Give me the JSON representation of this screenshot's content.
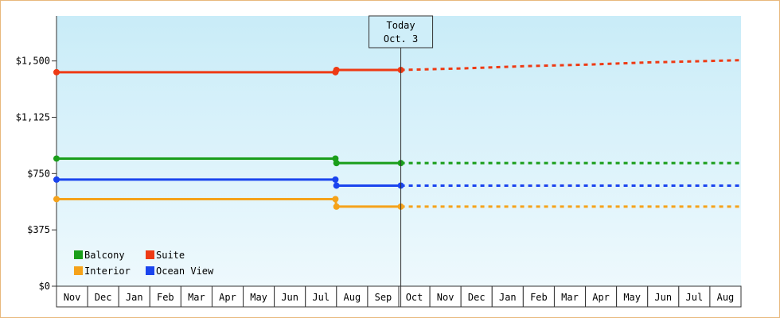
{
  "chart_data": {
    "type": "line",
    "title": "",
    "xlabel": "",
    "ylabel": "",
    "ylim": [
      0,
      1800
    ],
    "yticks": [
      0,
      375,
      750,
      1125,
      1500
    ],
    "ytick_labels": [
      "$0",
      "$375",
      "$750",
      "$1,125",
      "$1,500"
    ],
    "x_start": "2023-11-01",
    "x_end": "2025-09-01",
    "month_labels": [
      "Nov",
      "Dec",
      "Jan",
      "Feb",
      "Mar",
      "Apr",
      "May",
      "Jun",
      "Jul",
      "Aug",
      "Sep",
      "Oct",
      "Nov",
      "Dec",
      "Jan",
      "Feb",
      "Mar",
      "Apr",
      "May",
      "Jun",
      "Jul",
      "Aug"
    ],
    "today": {
      "date": "2024-10-03",
      "label_line1": "Today",
      "label_line2": "Oct. 3"
    },
    "grid": false,
    "legend_position": "bottom-left",
    "series": [
      {
        "name": "Suite",
        "color": "#ee3a14",
        "historical": [
          {
            "x": "2023-11-01",
            "y": 1425
          },
          {
            "x": "2024-07-31",
            "y": 1425
          },
          {
            "x": "2024-08-01",
            "y": 1440
          },
          {
            "x": "2024-10-03",
            "y": 1440
          }
        ],
        "projected": [
          {
            "x": "2024-10-03",
            "y": 1440
          },
          {
            "x": "2024-12-01",
            "y": 1450
          },
          {
            "x": "2025-02-01",
            "y": 1465
          },
          {
            "x": "2025-04-01",
            "y": 1475
          },
          {
            "x": "2025-06-01",
            "y": 1490
          },
          {
            "x": "2025-09-01",
            "y": 1505
          }
        ]
      },
      {
        "name": "Balcony",
        "color": "#1a9e1a",
        "historical": [
          {
            "x": "2023-11-01",
            "y": 850
          },
          {
            "x": "2024-07-31",
            "y": 850
          },
          {
            "x": "2024-08-01",
            "y": 820
          },
          {
            "x": "2024-10-03",
            "y": 820
          }
        ],
        "projected": [
          {
            "x": "2024-10-03",
            "y": 820
          },
          {
            "x": "2025-09-01",
            "y": 820
          }
        ]
      },
      {
        "name": "Ocean View",
        "color": "#1a44ee",
        "historical": [
          {
            "x": "2023-11-01",
            "y": 710
          },
          {
            "x": "2024-07-31",
            "y": 710
          },
          {
            "x": "2024-08-01",
            "y": 670
          },
          {
            "x": "2024-10-03",
            "y": 670
          }
        ],
        "projected": [
          {
            "x": "2024-10-03",
            "y": 670
          },
          {
            "x": "2025-09-01",
            "y": 670
          }
        ]
      },
      {
        "name": "Interior",
        "color": "#f5a21a",
        "historical": [
          {
            "x": "2023-11-01",
            "y": 580
          },
          {
            "x": "2024-07-31",
            "y": 580
          },
          {
            "x": "2024-08-01",
            "y": 530
          },
          {
            "x": "2024-10-03",
            "y": 530
          }
        ],
        "projected": [
          {
            "x": "2024-10-03",
            "y": 530
          },
          {
            "x": "2025-09-01",
            "y": 530
          }
        ]
      }
    ],
    "legend": [
      {
        "name": "Balcony",
        "color": "#1a9e1a"
      },
      {
        "name": "Suite",
        "color": "#ee3a14"
      },
      {
        "name": "Interior",
        "color": "#f5a21a"
      },
      {
        "name": "Ocean View",
        "color": "#1a44ee"
      }
    ]
  }
}
